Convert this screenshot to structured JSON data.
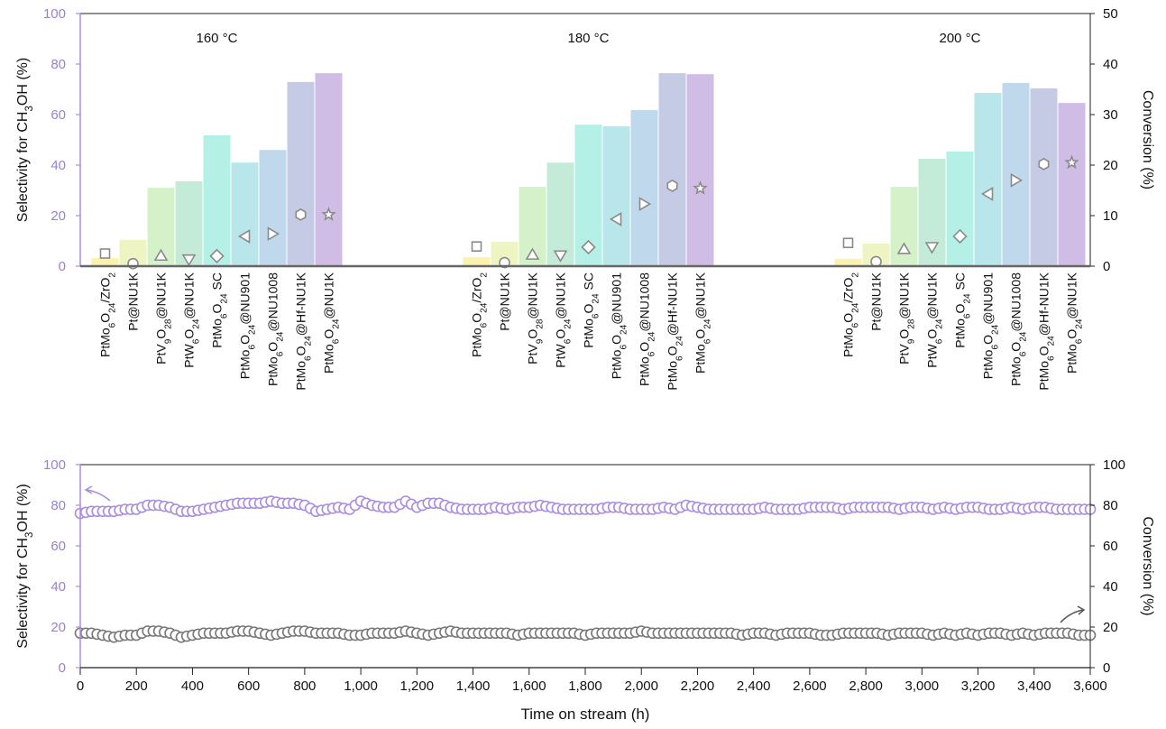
{
  "chart_data": [
    {
      "type": "bar",
      "title": "",
      "ylabel": "Selectivity for CH3OH (%)",
      "y2label": "Conversion (%)",
      "ylim": [
        0,
        100
      ],
      "y2lim": [
        0,
        50
      ],
      "yticks": [
        0,
        20,
        40,
        60,
        80,
        100
      ],
      "y2ticks": [
        0,
        10,
        20,
        30,
        40,
        50
      ],
      "categories": [
        "PtMo6O24/ZrO2",
        "Pt@NU1K",
        "PtV9O28@NU1K",
        "PtW6O24@NU1K",
        "PtMo6O24 SC",
        "PtMo6O24@NU901",
        "PtMo6O24@NU1008",
        "PtMo6O24@Hf-NU1K",
        "PtMo6O24@NU1K"
      ],
      "bar_colors": [
        "#fbf3ad",
        "#eef5c2",
        "#d5f1c9",
        "#c4ebd8",
        "#b5f0e6",
        "#b9e6eb",
        "#c0d8eb",
        "#c5cbe4",
        "#d0bde6"
      ],
      "markers": [
        "square",
        "circle",
        "triangle-up",
        "triangle-down",
        "diamond",
        "triangle-left",
        "triangle-right",
        "hexagon",
        "star"
      ],
      "groups": [
        {
          "name": "160 °C",
          "selectivity": [
            3.2,
            10.4,
            31.0,
            33.6,
            51.8,
            41.0,
            46.0,
            72.9,
            76.4
          ],
          "conversion": [
            2.5,
            0.5,
            2.1,
            1.3,
            2.0,
            5.9,
            6.4,
            10.2,
            10.2
          ]
        },
        {
          "name": "180 °C",
          "selectivity": [
            3.6,
            9.6,
            31.4,
            41.0,
            56.0,
            55.4,
            61.8,
            76.4,
            76.0
          ],
          "conversion": [
            3.9,
            0.7,
            2.3,
            2.1,
            3.75,
            9.3,
            12.3,
            15.9,
            15.4
          ]
        },
        {
          "name": "200 °C",
          "selectivity": [
            2.9,
            8.9,
            31.4,
            42.5,
            45.4,
            68.6,
            72.5,
            70.4,
            64.6
          ],
          "conversion": [
            4.6,
            0.9,
            3.4,
            3.75,
            5.9,
            14.3,
            17.0,
            20.2,
            20.5
          ]
        }
      ]
    },
    {
      "type": "scatter",
      "xlabel": "Time on stream (h)",
      "ylabel": "Selectivity for CH3OH (%)",
      "y2label": "Conversion (%)",
      "xlim": [
        0,
        3600
      ],
      "ylim": [
        0,
        100
      ],
      "y2lim": [
        0,
        100
      ],
      "xticks": [
        "0",
        "200",
        "400",
        "600",
        "800",
        "1,000",
        "1,200",
        "1,400",
        "1,600",
        "1,800",
        "2,000",
        "2,200",
        "2,400",
        "2,600",
        "2,800",
        "3,000",
        "3,200",
        "3,400",
        "3,600"
      ],
      "yticks": [
        0,
        20,
        40,
        60,
        80,
        100
      ],
      "x_step": 40,
      "series": [
        {
          "name": "Selectivity",
          "axis": "left",
          "color": "#a98be0",
          "values": [
            76,
            77,
            77,
            77,
            78,
            78,
            80,
            80,
            79,
            77,
            77,
            78,
            79,
            80,
            81,
            81,
            81,
            82,
            81,
            81,
            80,
            77,
            78,
            79,
            78,
            82,
            80,
            79,
            79,
            82,
            79,
            81,
            81,
            79,
            78,
            78,
            78,
            79,
            78,
            79,
            79,
            80,
            79,
            78,
            78,
            78,
            78,
            79,
            79,
            78,
            78,
            78,
            79,
            78,
            80,
            79,
            78,
            78,
            78,
            78,
            78,
            79,
            78,
            78,
            78,
            79,
            79,
            79,
            78,
            79,
            79,
            79,
            79,
            78,
            79,
            79,
            78,
            79,
            78,
            79,
            79,
            78,
            78,
            79,
            78,
            79,
            79,
            78,
            78,
            78,
            78
          ]
        },
        {
          "name": "Conversion",
          "axis": "right",
          "color": "#777777",
          "values": [
            17,
            17,
            16,
            15,
            16,
            16,
            18,
            18,
            17,
            15,
            16,
            17,
            17,
            17,
            18,
            18,
            17,
            16,
            17,
            18,
            18,
            17,
            17,
            17,
            16,
            16,
            17,
            17,
            17,
            18,
            17,
            16,
            17,
            18,
            17,
            17,
            17,
            17,
            17,
            16,
            17,
            17,
            17,
            17,
            17,
            16,
            17,
            17,
            17,
            17,
            18,
            17,
            17,
            17,
            17,
            17,
            17,
            17,
            17,
            16,
            17,
            17,
            16,
            17,
            17,
            17,
            16,
            16,
            17,
            17,
            17,
            17,
            16,
            17,
            17,
            17,
            16,
            17,
            16,
            17,
            16,
            17,
            17,
            16,
            17,
            16,
            17,
            17,
            17,
            16,
            16
          ]
        }
      ]
    }
  ]
}
